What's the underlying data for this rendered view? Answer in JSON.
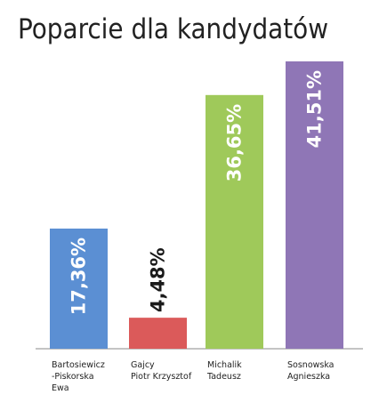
{
  "chart_data": {
    "type": "bar",
    "title": "Poparcie dla kandydatów",
    "xlabel": "",
    "ylabel": "",
    "ylim": [
      0,
      41.51
    ],
    "grid": false,
    "categories": [
      [
        "Bartosiewicz",
        "-Piskorska",
        "Ewa"
      ],
      [
        "Gajcy",
        "Piotr Krzysztof"
      ],
      [
        "Michalik",
        "Tadeusz"
      ],
      [
        "Sosnowska",
        "Agnieszka"
      ]
    ],
    "values": [
      17.36,
      4.48,
      36.65,
      41.51
    ],
    "data_labels": [
      "17,36%",
      "4,48%",
      "36,65%",
      "41,51%"
    ],
    "colors": [
      "#5b8fd3",
      "#db5a5a",
      "#9fc95a",
      "#8f76b6"
    ],
    "label_inside": [
      true,
      false,
      true,
      true
    ],
    "label_colors": [
      "#ffffff",
      "#1a1a1a",
      "#ffffff",
      "#ffffff"
    ]
  }
}
